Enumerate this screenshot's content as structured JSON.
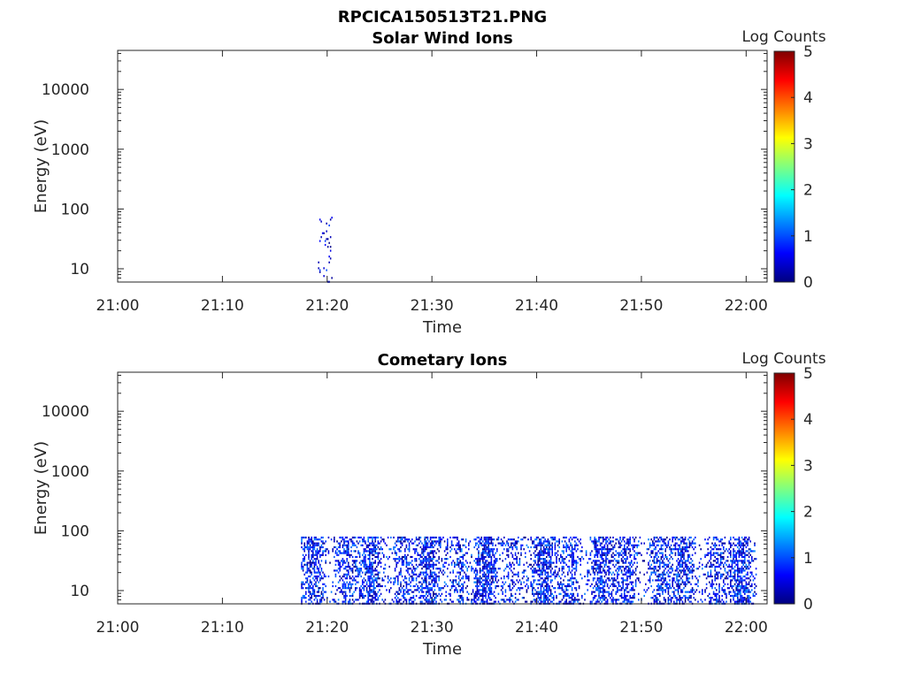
{
  "figure_title": "RPCICA150513T21.PNG",
  "chart_data": [
    {
      "type": "heatmap",
      "title": "Solar Wind Ions",
      "xlabel": "Time",
      "ylabel": "Energy (eV)",
      "y_scale": "log",
      "ylim": [
        6,
        45000
      ],
      "x_range": [
        "21:00",
        "22:02"
      ],
      "x_ticks": [
        "21:00",
        "21:10",
        "21:20",
        "21:30",
        "21:40",
        "21:50",
        "22:00"
      ],
      "y_ticks": [
        "10",
        "100",
        "1000",
        "10000"
      ],
      "colorbar": {
        "label": "Log Counts",
        "range": [
          0,
          5
        ],
        "ticks": [
          "0",
          "1",
          "2",
          "3",
          "4",
          "5"
        ],
        "colormap": "jet"
      },
      "grid": false,
      "activity": [
        {
          "start": "21:19",
          "end": "21:20:30",
          "energy_range": [
            6,
            80
          ],
          "log_counts": [
            0,
            1
          ]
        }
      ]
    },
    {
      "type": "heatmap",
      "title": "Cometary Ions",
      "xlabel": "Time",
      "ylabel": "Energy (eV)",
      "y_scale": "log",
      "ylim": [
        6,
        45000
      ],
      "x_range": [
        "21:00",
        "22:02"
      ],
      "x_ticks": [
        "21:00",
        "21:10",
        "21:20",
        "21:30",
        "21:40",
        "21:50",
        "22:00"
      ],
      "y_ticks": [
        "10",
        "100",
        "1000",
        "10000"
      ],
      "colorbar": {
        "label": "Log Counts",
        "range": [
          0,
          5
        ],
        "ticks": [
          "0",
          "1",
          "2",
          "3",
          "4",
          "5"
        ],
        "colormap": "jet"
      },
      "grid": false,
      "activity": [
        {
          "start": "21:17:30",
          "end": "22:01",
          "energy_range": [
            6,
            80
          ],
          "log_counts": [
            0,
            1.3
          ]
        }
      ]
    }
  ]
}
